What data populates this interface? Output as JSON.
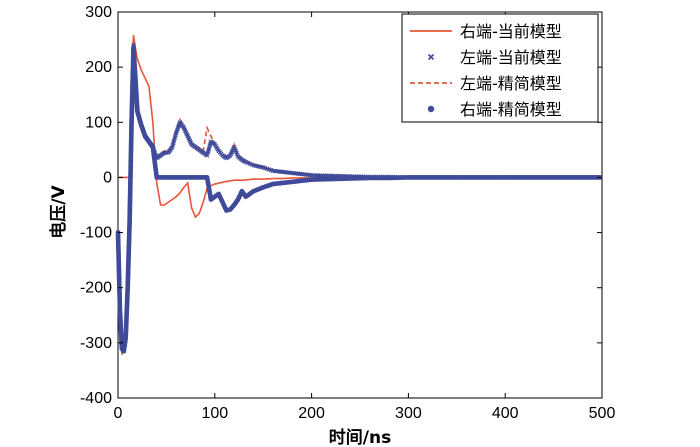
{
  "chart_data": {
    "type": "line",
    "xlabel": "时间/ns",
    "ylabel": "电压/V",
    "xlim": [
      0,
      500
    ],
    "ylim": [
      -400,
      300
    ],
    "xticks": [
      0,
      100,
      200,
      300,
      400,
      500
    ],
    "yticks": [
      -400,
      -300,
      -200,
      -100,
      0,
      100,
      200,
      300
    ],
    "grid": false,
    "legend_position": "top-right",
    "series": [
      {
        "name": "右端-当前模型",
        "style": "solid",
        "color": "#e8553a",
        "x": [
          0,
          2,
          4,
          6,
          8,
          10,
          12,
          14,
          16,
          18,
          20,
          24,
          28,
          32,
          36,
          40,
          44,
          48,
          52,
          56,
          60,
          64,
          68,
          72,
          76,
          80,
          84,
          88,
          92,
          96,
          100,
          110,
          120,
          130,
          140,
          150,
          160,
          170,
          180,
          200,
          220,
          240,
          260,
          280,
          300,
          500
        ],
        "y": [
          0,
          0,
          0,
          0,
          0,
          0,
          0,
          180,
          258,
          235,
          215,
          195,
          180,
          165,
          100,
          -10,
          -50,
          -50,
          -45,
          -40,
          -35,
          -28,
          -18,
          -10,
          -55,
          -72,
          -65,
          -45,
          -20,
          -15,
          -12,
          -8,
          -5,
          -5,
          -3,
          -3,
          -2,
          -2,
          -1,
          -1,
          0,
          0,
          0,
          0,
          0,
          0
        ]
      },
      {
        "name": "左端-当前模型",
        "style": "cross",
        "color": "#3f4a9a",
        "x": [
          0,
          2,
          4,
          6,
          8,
          10,
          12,
          14,
          16,
          18,
          20,
          24,
          28,
          32,
          36,
          40,
          44,
          48,
          52,
          56,
          60,
          64,
          68,
          72,
          76,
          80,
          84,
          88,
          92,
          96,
          100,
          104,
          108,
          112,
          116,
          120,
          124,
          128,
          132,
          140,
          150,
          160,
          170,
          180,
          190,
          200,
          220,
          240,
          260,
          280,
          300,
          350,
          400,
          450,
          500
        ],
        "y": [
          -100,
          -240,
          -310,
          -315,
          -290,
          -200,
          -80,
          100,
          240,
          180,
          120,
          95,
          75,
          65,
          55,
          35,
          40,
          45,
          45,
          55,
          80,
          100,
          90,
          75,
          60,
          55,
          50,
          45,
          40,
          65,
          60,
          48,
          40,
          35,
          40,
          55,
          38,
          32,
          28,
          22,
          18,
          12,
          10,
          8,
          6,
          4,
          3,
          2,
          1,
          1,
          0,
          0,
          0,
          0,
          0
        ]
      },
      {
        "name": "左端-精简模型",
        "style": "dashed",
        "color": "#e8553a",
        "x": [
          0,
          2,
          4,
          6,
          8,
          10,
          12,
          14,
          16,
          18,
          20,
          24,
          28,
          32,
          36,
          40,
          44,
          48,
          52,
          56,
          60,
          64,
          68,
          72,
          76,
          80,
          84,
          88,
          92,
          96,
          100,
          104,
          108,
          112,
          116,
          120,
          124,
          128,
          132,
          140,
          150,
          160,
          170,
          180,
          190,
          200,
          220,
          240,
          260,
          280,
          300,
          350,
          400,
          450,
          500
        ],
        "y": [
          -110,
          -250,
          -320,
          -320,
          -290,
          -200,
          -80,
          100,
          250,
          185,
          125,
          100,
          80,
          68,
          58,
          38,
          42,
          48,
          48,
          58,
          85,
          105,
          92,
          78,
          62,
          58,
          52,
          48,
          90,
          75,
          60,
          50,
          42,
          38,
          42,
          60,
          40,
          34,
          30,
          24,
          20,
          14,
          12,
          9,
          7,
          5,
          4,
          3,
          2,
          1,
          0,
          0,
          0,
          0,
          0
        ]
      },
      {
        "name": "右端-精简模型",
        "style": "dot",
        "color": "#3f4a9a",
        "x": [
          0,
          2,
          4,
          6,
          8,
          10,
          12,
          14,
          16,
          18,
          20,
          24,
          28,
          32,
          36,
          40,
          44,
          48,
          52,
          56,
          60,
          64,
          68,
          72,
          76,
          80,
          84,
          88,
          92,
          96,
          100,
          104,
          108,
          112,
          116,
          120,
          124,
          128,
          132,
          140,
          150,
          160,
          170,
          180,
          190,
          200,
          220,
          240,
          260,
          280,
          300,
          350,
          400,
          450,
          500
        ],
        "y": [
          -100,
          -240,
          -310,
          -315,
          -290,
          -200,
          -80,
          100,
          235,
          180,
          120,
          95,
          75,
          65,
          55,
          0,
          0,
          0,
          0,
          0,
          0,
          0,
          0,
          0,
          0,
          0,
          0,
          0,
          0,
          -40,
          -35,
          -30,
          -45,
          -60,
          -58,
          -50,
          -40,
          -25,
          -35,
          -25,
          -18,
          -12,
          -10,
          -8,
          -6,
          -4,
          -3,
          -2,
          -1,
          -1,
          0,
          0,
          0,
          0,
          0
        ]
      }
    ]
  }
}
